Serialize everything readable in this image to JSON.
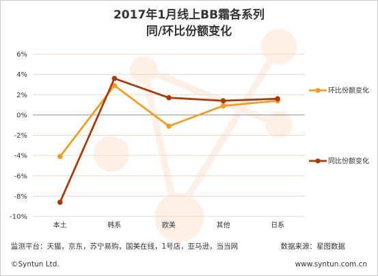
{
  "title_line1": "2017年1月线上BB霜各系列",
  "title_line2": "同/环比份额变化",
  "footer": {
    "source": "监测平台：天猫，京东，苏宁易购，国美在线，1号店，亚马逊，当当网",
    "provider": "数据来源：星图数据",
    "copyright": "©Syntun Ltd.",
    "site": "www.syntun.com.cn"
  },
  "chart_data": {
    "type": "line",
    "categories": [
      "本土",
      "韩系",
      "欧美",
      "其他",
      "日系"
    ],
    "yticks": [
      "6%",
      "4%",
      "2%",
      "0%",
      "-2%",
      "-4%",
      "-6%",
      "-8%",
      "-10%"
    ],
    "ylim": [
      -10,
      6
    ],
    "grid": true,
    "legend_position": "right",
    "series": [
      {
        "name": "环比份额变化",
        "color": "#f39c1f",
        "values": [
          -4.1,
          2.9,
          -1.1,
          0.9,
          1.4
        ]
      },
      {
        "name": "同比份额变化",
        "color": "#a83a08",
        "values": [
          -8.6,
          3.6,
          1.7,
          1.4,
          1.6
        ]
      }
    ]
  }
}
